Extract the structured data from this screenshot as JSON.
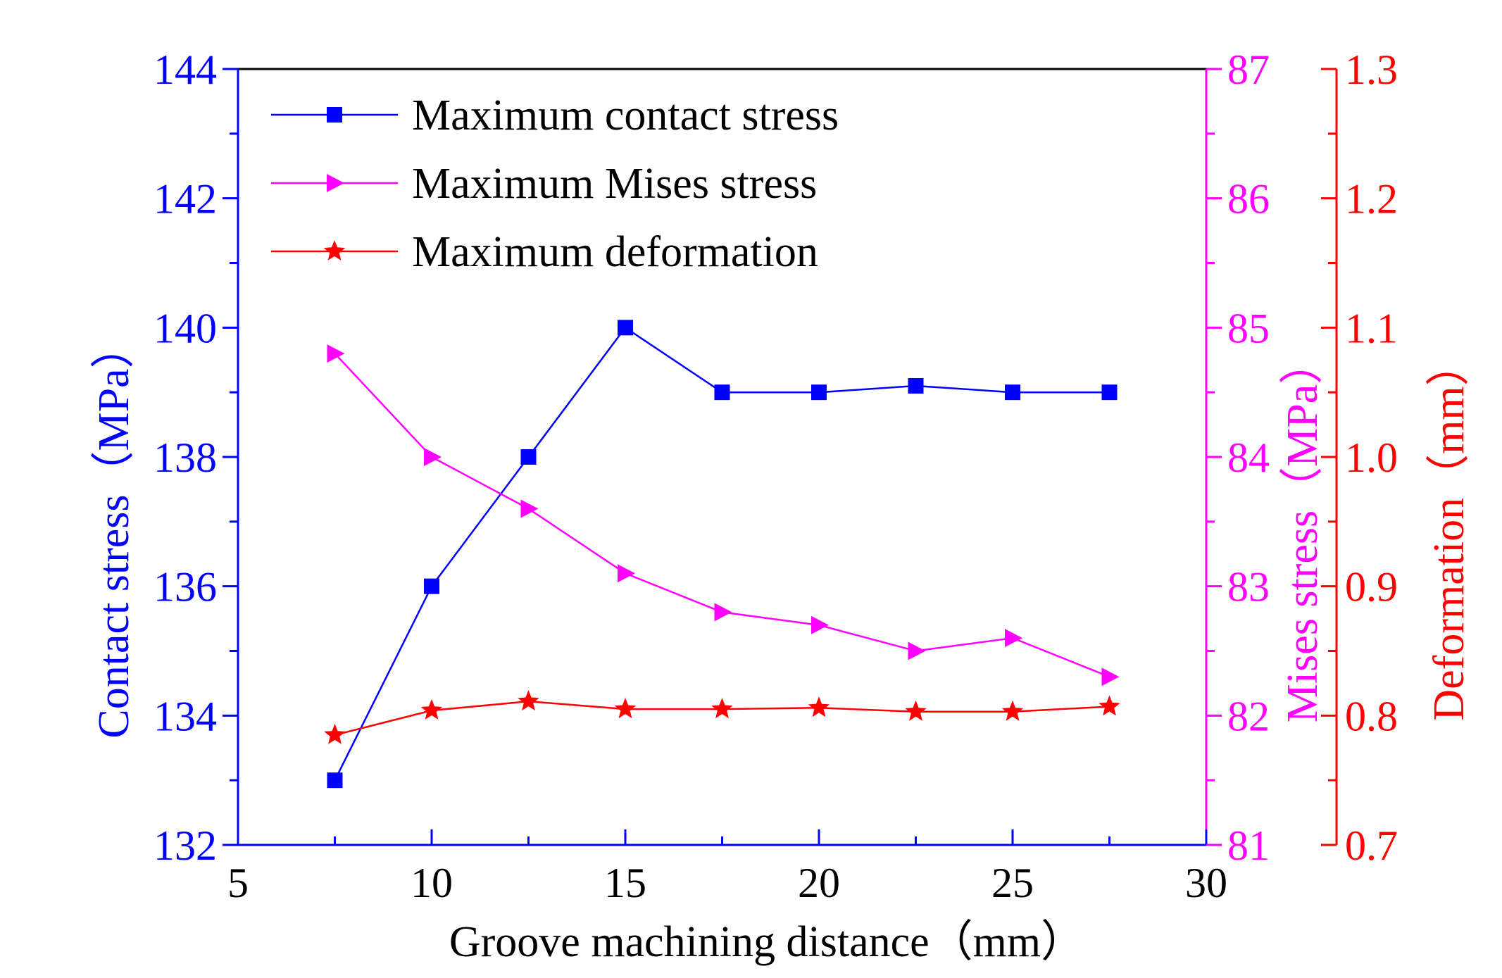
{
  "chart_data": {
    "type": "line",
    "x": [
      7.5,
      10,
      12.5,
      15,
      17.5,
      20,
      22.5,
      25,
      27.5
    ],
    "x_axis": {
      "label": "Groove machining distance（mm）",
      "range": [
        5,
        30
      ],
      "ticks": [
        5,
        10,
        15,
        20,
        25,
        30
      ],
      "tick_labels": [
        "5",
        "10",
        "15",
        "20",
        "25",
        "30"
      ]
    },
    "y_axes": [
      {
        "id": "contact",
        "label": "Contact stress（MPa）",
        "color": "#0000ff",
        "side": "left",
        "range": [
          132,
          144
        ],
        "ticks": [
          132,
          134,
          136,
          138,
          140,
          142,
          144
        ],
        "tick_labels": [
          "132",
          "134",
          "136",
          "138",
          "140",
          "142",
          "144"
        ]
      },
      {
        "id": "mises",
        "label": "Mises stress（MPa）",
        "color": "#ff00ff",
        "side": "right",
        "range": [
          81,
          87
        ],
        "ticks": [
          81,
          82,
          83,
          84,
          85,
          86,
          87
        ],
        "tick_labels": [
          "81",
          "82",
          "83",
          "84",
          "85",
          "86",
          "87"
        ]
      },
      {
        "id": "deformation",
        "label": "Deformation（mm）",
        "color": "#ff0000",
        "side": "right-offset",
        "range": [
          0.7,
          1.3
        ],
        "ticks": [
          0.7,
          0.8,
          0.9,
          1.0,
          1.1,
          1.2,
          1.3
        ],
        "tick_labels": [
          "0.7",
          "0.8",
          "0.9",
          "1.0",
          "1.1",
          "1.2",
          "1.3"
        ]
      }
    ],
    "series": [
      {
        "name": "Maximum contact stress",
        "axis": "contact",
        "marker": "square",
        "color": "#0000ff",
        "values": [
          133.0,
          136.0,
          138.0,
          140.0,
          139.0,
          139.0,
          139.1,
          139.0,
          139.0
        ]
      },
      {
        "name": "Maximum Mises stress",
        "axis": "mises",
        "marker": "triangle-right",
        "color": "#ff00ff",
        "values": [
          84.8,
          84.0,
          83.6,
          83.1,
          82.8,
          82.7,
          82.5,
          82.6,
          82.3
        ]
      },
      {
        "name": "Maximum deformation",
        "axis": "deformation",
        "marker": "star",
        "color": "#ff0000",
        "values": [
          0.785,
          0.804,
          0.811,
          0.805,
          0.805,
          0.806,
          0.803,
          0.803,
          0.807
        ]
      }
    ],
    "legend": {
      "position": "top-left"
    },
    "grid": false
  }
}
